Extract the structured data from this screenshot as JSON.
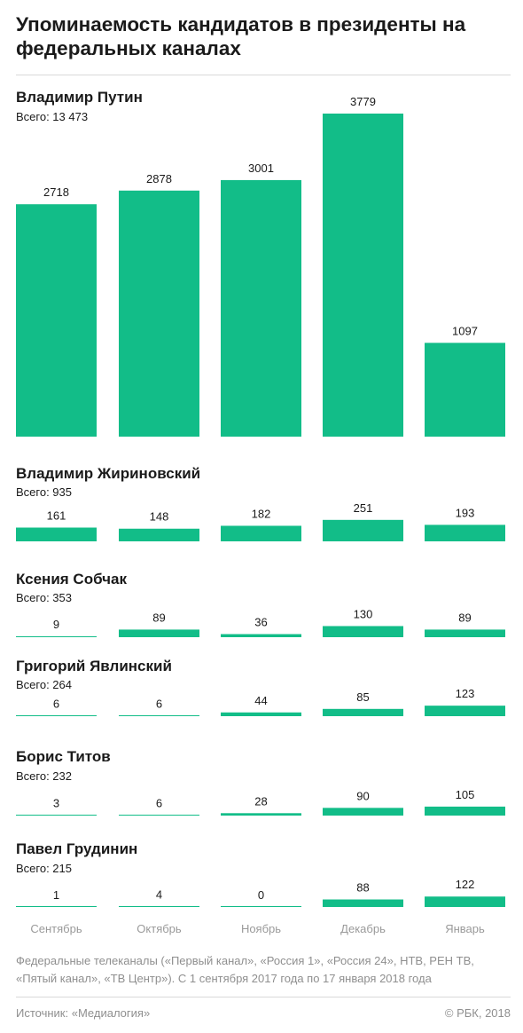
{
  "title": "Упоминаемость кандидатов в президенты на федеральных каналах",
  "note": "Федеральные телеканалы («Первый канал», «Россия 1», «Россия 24», НТВ, РЕН ТВ, «Пятый канал», «ТВ Центр»). С 1 сентября 2017 года по 17 января 2018 года",
  "source": "Источник: «Медиалогия»",
  "copyright": "© РБК, 2018",
  "colors": {
    "bar": "#12bd88",
    "baseline": "#12bd88",
    "text": "#1a1a1a",
    "muted": "#9a9a9a"
  },
  "chart_data": {
    "type": "bar",
    "categories": [
      "Сентябрь",
      "Октябрь",
      "Ноябрь",
      "Декабрь",
      "Январь"
    ],
    "series": [
      {
        "name": "Владимир Путин",
        "total": "Всего: 13 473",
        "values": [
          2718,
          2878,
          3001,
          3779,
          1097
        ],
        "labels": [
          "2718",
          "2878",
          "3001",
          "3779",
          "1097"
        ]
      },
      {
        "name": "Владимир Жириновский",
        "total": "Всего: 935",
        "values": [
          161,
          148,
          182,
          251,
          193
        ],
        "labels": [
          "161",
          "148",
          "182",
          "251",
          "193"
        ]
      },
      {
        "name": "Ксения Собчак",
        "total": "Всего: 353",
        "values": [
          9,
          89,
          36,
          130,
          89
        ],
        "labels": [
          "9",
          "89",
          "36",
          "130",
          "89"
        ]
      },
      {
        "name": "Григорий Явлинский",
        "total": "Всего: 264",
        "values": [
          6,
          6,
          44,
          85,
          123
        ],
        "labels": [
          "6",
          "6",
          "44",
          "85",
          "123"
        ]
      },
      {
        "name": "Борис Титов",
        "total": "Всего: 232",
        "values": [
          3,
          6,
          28,
          90,
          105
        ],
        "labels": [
          "3",
          "6",
          "28",
          "90",
          "105"
        ]
      },
      {
        "name": "Павел Грудинин",
        "total": "Всего: 215",
        "values": [
          1,
          4,
          0,
          88,
          122
        ],
        "labels": [
          "1",
          "4",
          "0",
          "88",
          "122"
        ]
      }
    ]
  }
}
